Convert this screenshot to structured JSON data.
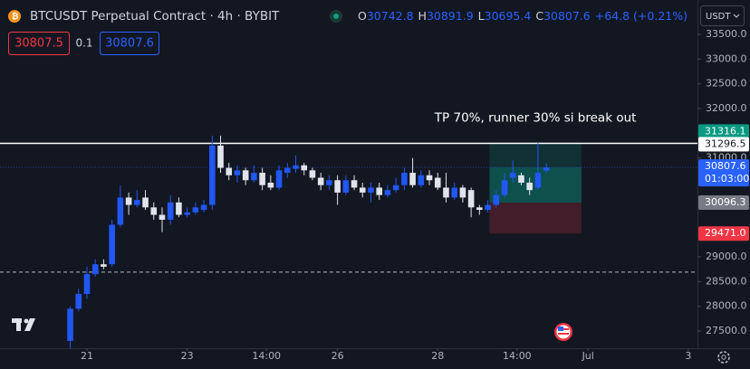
{
  "header": {
    "symbol_title": "BTCUSDT Perpetual Contract · 4h · BYBIT",
    "ohlc_letters": [
      "O",
      "H",
      "L",
      "C"
    ],
    "change": "+64.8 (+0.21%)",
    "bid": 30807.5,
    "quantity": 0.1,
    "ask": 30807.6,
    "currency": "USDT"
  },
  "chart_data": {
    "type": "candlestick",
    "x": [
      -2,
      -1,
      0,
      1,
      2,
      3,
      4,
      5,
      6,
      7,
      8,
      9,
      10,
      11,
      12,
      13,
      14,
      15,
      16,
      17,
      18,
      19,
      20,
      21,
      22,
      23,
      24,
      25,
      26,
      27,
      28,
      29,
      30,
      31,
      32,
      33,
      34,
      35,
      36,
      37,
      38,
      39,
      40,
      41,
      42,
      43,
      44,
      45,
      46,
      47,
      48,
      49,
      50,
      51,
      52,
      53,
      54,
      55
    ],
    "open": [
      27300,
      27950,
      28250,
      28650,
      28850,
      28850,
      29650,
      30200,
      30050,
      30200,
      30000,
      29850,
      29750,
      30100,
      29850,
      29900,
      29950,
      30050,
      31250,
      30800,
      30650,
      30750,
      30550,
      30700,
      30500,
      30400,
      30700,
      30780,
      30850,
      30750,
      30600,
      30450,
      30550,
      30300,
      30550,
      30400,
      30300,
      30400,
      30250,
      30350,
      30450,
      30700,
      30450,
      30650,
      30600,
      30400,
      30200,
      30400,
      30350,
      30000,
      29950,
      30050,
      30250,
      30600,
      30650,
      30500,
      30400,
      30742.8
    ],
    "high": [
      28000,
      28350,
      28800,
      28950,
      28950,
      29750,
      30450,
      30300,
      30350,
      30350,
      30100,
      30000,
      30250,
      30200,
      30000,
      30100,
      30150,
      31450,
      31450,
      30900,
      30850,
      30800,
      30850,
      30800,
      30650,
      30850,
      30900,
      31050,
      30900,
      30800,
      30700,
      30650,
      30650,
      30650,
      30650,
      30500,
      30500,
      30500,
      30450,
      30600,
      30800,
      31000,
      30750,
      30750,
      30700,
      30700,
      30500,
      30450,
      30400,
      30050,
      30150,
      30350,
      30700,
      30950,
      30700,
      30600,
      31300,
      30891.9
    ],
    "low": [
      27150,
      27900,
      28150,
      28600,
      28750,
      28800,
      29600,
      29850,
      30000,
      29950,
      29750,
      29500,
      29650,
      29800,
      29800,
      29850,
      29900,
      29950,
      30700,
      30550,
      30500,
      30450,
      30500,
      30350,
      30350,
      30350,
      30600,
      30700,
      30650,
      30550,
      30350,
      30350,
      30050,
      30250,
      30350,
      30200,
      30100,
      30150,
      30200,
      30300,
      30350,
      30400,
      30400,
      30450,
      30350,
      30100,
      30150,
      30100,
      29800,
      29850,
      29900,
      30000,
      30200,
      30500,
      30450,
      30250,
      30350,
      30695.4
    ],
    "close": [
      27950,
      28250,
      28650,
      28850,
      28800,
      29650,
      30200,
      30050,
      30150,
      30000,
      29850,
      29750,
      30100,
      29850,
      29900,
      30000,
      30050,
      31250,
      30800,
      30650,
      30750,
      30550,
      30700,
      30450,
      30400,
      30750,
      30800,
      30850,
      30750,
      30600,
      30450,
      30550,
      30300,
      30550,
      30400,
      30300,
      30400,
      30250,
      30350,
      30450,
      30700,
      30450,
      30650,
      30550,
      30400,
      30200,
      30400,
      30200,
      30000,
      29950,
      30050,
      30250,
      30550,
      30700,
      30500,
      30350,
      30700,
      30807.6
    ],
    "up_color": "#2157f3",
    "down_color": "#e0e3eb",
    "xlim": [
      -10.41,
      73.1
    ],
    "xticks": [
      {
        "value": 0,
        "label": "21"
      },
      {
        "value": 12,
        "label": "23"
      },
      {
        "value": 21.5,
        "label": "14:00"
      },
      {
        "value": 30,
        "label": "26"
      },
      {
        "value": 42,
        "label": "28"
      },
      {
        "value": 51.5,
        "label": "14:00"
      },
      {
        "value": 60,
        "label": "Jul"
      },
      {
        "value": 72,
        "label": "3"
      }
    ],
    "ylim": [
      27152,
      34195
    ],
    "yticks": [
      {
        "value": 33500,
        "label": "33500.0"
      },
      {
        "value": 33000,
        "label": "33000.0"
      },
      {
        "value": 32500,
        "label": "32500.0"
      },
      {
        "value": 32000,
        "label": "32000.0"
      },
      {
        "value": 31500,
        "label": "31500.0"
      },
      {
        "value": 31000,
        "label": "31000.0"
      },
      {
        "value": 29000,
        "label": "29000.0"
      },
      {
        "value": 28500,
        "label": "28500.0"
      },
      {
        "value": 28000,
        "label": "28000.0"
      },
      {
        "value": 27500,
        "label": "27500.0"
      }
    ],
    "annotation": "TP 70%, runner 30% si break out",
    "hlines": [
      {
        "value": 31296.5,
        "color": "#ffffff",
        "dashed": false
      },
      {
        "value": 28690,
        "color": "#b2b5be",
        "dashed": true
      }
    ],
    "position": {
      "x_start": 48.2,
      "x_end": 59.2,
      "target": 31316.1,
      "entry": 30096.3,
      "stop": {
        "value": 29471,
        "label": "29471.0"
      }
    },
    "countdown": "01:03:00"
  }
}
